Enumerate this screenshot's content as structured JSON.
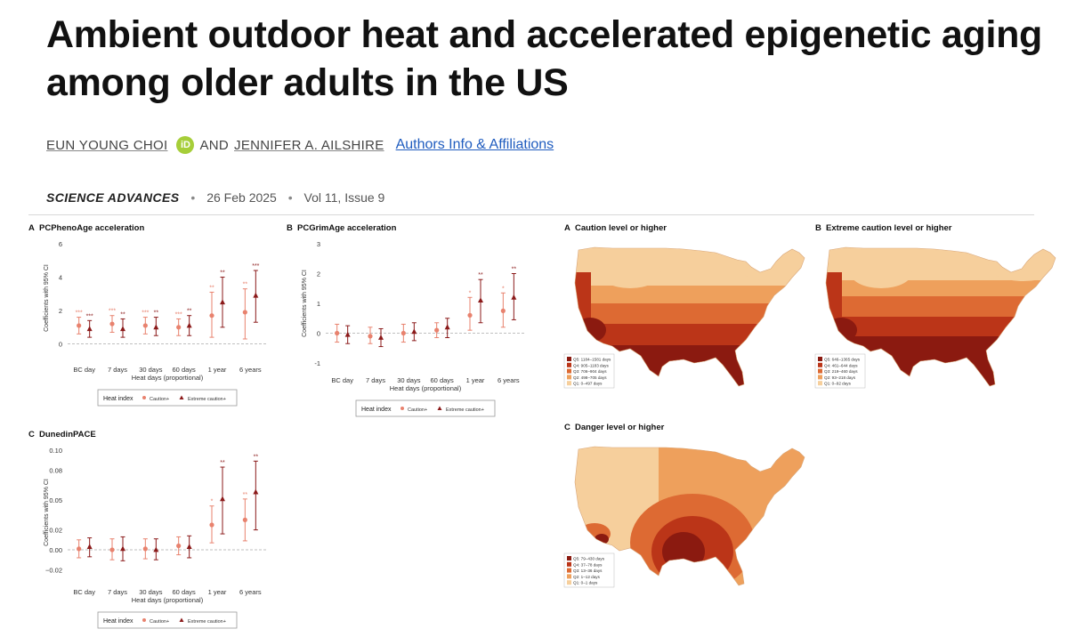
{
  "article": {
    "title": "Ambient outdoor heat and accelerated epigenetic aging among older adults in the US",
    "author1": "EUN YOUNG CHOI",
    "orcid_badge": "iD",
    "and": "AND",
    "author2": "JENNIFER A. AILSHIRE",
    "authors_link": "Authors Info & Affiliations",
    "journal": "SCIENCE ADVANCES",
    "date": "26 Feb 2025",
    "volume": "Vol 11, Issue 9",
    "separator": "•"
  },
  "colors": {
    "caution": "#e8826e",
    "extreme": "#8b1a1a",
    "link": "#1f5cbf"
  },
  "legend": {
    "heading": "Heat index",
    "caution": "Caution+",
    "extreme": "Extreme caution+"
  },
  "chart_data": [
    {
      "type": "scatter",
      "panel": "A",
      "title": "PCPhenoAge acceleration",
      "xlabel": "Heat days (proportional)",
      "ylabel": "Coefficients with 95% CI",
      "categories": [
        "BC day",
        "7 days",
        "30 days",
        "60 days",
        "1 year",
        "6 years"
      ],
      "yticks": [
        "0",
        "2",
        "4",
        "6"
      ],
      "ylim": [
        -0.5,
        6
      ],
      "series": [
        {
          "name": "Caution+",
          "values": [
            1.1,
            1.2,
            1.1,
            1.0,
            1.7,
            1.9
          ],
          "lower": [
            0.6,
            0.7,
            0.6,
            0.5,
            0.4,
            0.3
          ],
          "upper": [
            1.6,
            1.7,
            1.6,
            1.5,
            3.1,
            3.3
          ],
          "stars": [
            "***",
            "***",
            "***",
            "***",
            "**",
            "**"
          ]
        },
        {
          "name": "Extreme caution+",
          "values": [
            0.9,
            0.9,
            1.0,
            1.1,
            2.5,
            2.9
          ],
          "lower": [
            0.4,
            0.4,
            0.5,
            0.5,
            1.0,
            1.3
          ],
          "upper": [
            1.4,
            1.5,
            1.6,
            1.7,
            4.0,
            4.4
          ],
          "stars": [
            "***",
            "**",
            "**",
            "**",
            "**",
            "***"
          ]
        }
      ]
    },
    {
      "type": "scatter",
      "panel": "B",
      "title": "PCGrimAge acceleration",
      "xlabel": "Heat days (proportional)",
      "ylabel": "Coefficients with 95% CI",
      "categories": [
        "BC day",
        "7 days",
        "30 days",
        "60 days",
        "1 year",
        "6 years"
      ],
      "yticks": [
        "-1",
        "0",
        "1",
        "2",
        "3"
      ],
      "ylim": [
        -1,
        3
      ],
      "series": [
        {
          "name": "Caution+",
          "values": [
            0.0,
            -0.1,
            0.0,
            0.1,
            0.6,
            0.75
          ],
          "lower": [
            -0.3,
            -0.35,
            -0.3,
            -0.15,
            0.1,
            0.2
          ],
          "upper": [
            0.3,
            0.2,
            0.3,
            0.35,
            1.2,
            1.35
          ],
          "stars": [
            "",
            "",
            "",
            "",
            "*",
            "*"
          ]
        },
        {
          "name": "Extreme caution+",
          "values": [
            -0.05,
            -0.15,
            0.05,
            0.2,
            1.1,
            1.2
          ],
          "lower": [
            -0.35,
            -0.45,
            -0.25,
            -0.15,
            0.35,
            0.45
          ],
          "upper": [
            0.25,
            0.15,
            0.35,
            0.5,
            1.8,
            2.0
          ],
          "stars": [
            "",
            "",
            "",
            "",
            "**",
            "**"
          ]
        }
      ]
    },
    {
      "type": "scatter",
      "panel": "C",
      "title": "DunedinPACE",
      "xlabel": "Heat days (proportional)",
      "ylabel": "Coefficients with 95% CI",
      "categories": [
        "BC day",
        "7 days",
        "30 days",
        "60 days",
        "1 year",
        "6 years"
      ],
      "yticks": [
        "−0.02",
        "0.00",
        "0.02",
        "0.05",
        "0.08",
        "0.10"
      ],
      "ylim": [
        -0.025,
        0.1
      ],
      "series": [
        {
          "name": "Caution+",
          "values": [
            0.001,
            0.0,
            0.001,
            0.004,
            0.025,
            0.03
          ],
          "lower": [
            -0.008,
            -0.01,
            -0.009,
            -0.005,
            0.007,
            0.009
          ],
          "upper": [
            0.01,
            0.011,
            0.011,
            0.013,
            0.044,
            0.051
          ],
          "stars": [
            "",
            "",
            "",
            "",
            "*",
            "**"
          ]
        },
        {
          "name": "Extreme caution+",
          "values": [
            0.003,
            0.001,
            0.0,
            0.003,
            0.051,
            0.058
          ],
          "lower": [
            -0.007,
            -0.011,
            -0.01,
            -0.008,
            0.016,
            0.02
          ],
          "upper": [
            0.012,
            0.013,
            0.011,
            0.014,
            0.083,
            0.089
          ],
          "stars": [
            "",
            "",
            "",
            "",
            "**",
            "**"
          ]
        }
      ]
    }
  ],
  "maps": [
    {
      "panel": "A",
      "title": "Caution level or higher",
      "legend": [
        "Q5: 1184–1581 days",
        "Q4: 905–1183 days",
        "Q3: 706–904 days",
        "Q2: 498–705 days",
        "Q1: 0–497 days"
      ]
    },
    {
      "panel": "B",
      "title": "Extreme caution level or higher",
      "legend": [
        "Q5: 646–1365 days",
        "Q4: 461–644 days",
        "Q3: 219–460 days",
        "Q2: 93–218 days",
        "Q1: 0–92 days"
      ]
    },
    {
      "panel": "C",
      "title": "Danger level or higher",
      "legend": [
        "Q5: 79–430 days",
        "Q4: 37–78 days",
        "Q3: 13–36 days",
        "Q2: 1–12 days",
        "Q1: 0–1 days"
      ]
    }
  ],
  "map_colors": [
    "#8b1a10",
    "#bb3518",
    "#dd6a33",
    "#eea05c",
    "#f6cf9c"
  ]
}
